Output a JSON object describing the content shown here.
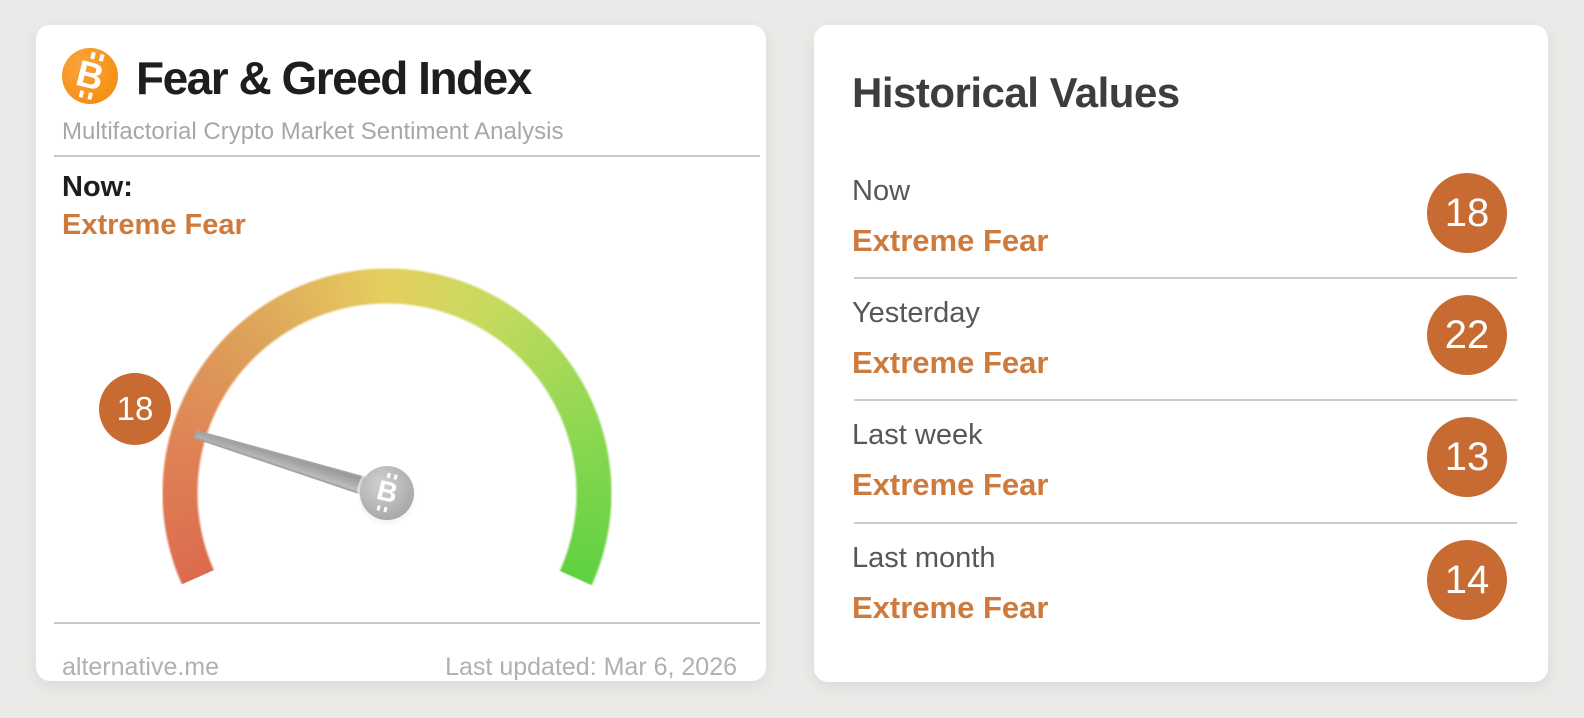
{
  "fear_greed_card": {
    "title": "Fear & Greed Index",
    "subtitle": "Multifactorial Crypto Market Sentiment Analysis",
    "now_label": "Now:",
    "now_classification": "Extreme Fear",
    "badge_value": "18",
    "source": "alternative.me",
    "last_updated": "Last updated: Mar 6, 2026"
  },
  "historical": {
    "title": "Historical Values",
    "rows": [
      {
        "label": "Now",
        "classification": "Extreme Fear",
        "value": "18"
      },
      {
        "label": "Yesterday",
        "classification": "Extreme Fear",
        "value": "22"
      },
      {
        "label": "Last week",
        "classification": "Extreme Fear",
        "value": "13"
      },
      {
        "label": "Last month",
        "classification": "Extreme Fear",
        "value": "14"
      }
    ]
  },
  "colors": {
    "bitcoin_orange": "#f7931a",
    "badge_orange": "#c76b32",
    "classification_orange": "#cd7a3c",
    "gauge_red": "#db6b4e",
    "gauge_yellow": "#e6cd5e",
    "gauge_green": "#5fd140",
    "needle_gray": "#a8a8a8",
    "page_background": "#ebeae8"
  },
  "chart_data": {
    "type": "gauge",
    "title": "Fear & Greed Index",
    "value": 18,
    "classification": "Extreme Fear",
    "range": [
      0,
      100
    ],
    "start_angle_deg": 204,
    "sweep_deg": 228,
    "color_scale": [
      "#db6b4e",
      "#e6cd5e",
      "#5fd140"
    ],
    "historical_values": [
      {
        "label": "Now",
        "value": 18,
        "classification": "Extreme Fear"
      },
      {
        "label": "Yesterday",
        "value": 22,
        "classification": "Extreme Fear"
      },
      {
        "label": "Last week",
        "value": 13,
        "classification": "Extreme Fear"
      },
      {
        "label": "Last month",
        "value": 14,
        "classification": "Extreme Fear"
      }
    ]
  }
}
